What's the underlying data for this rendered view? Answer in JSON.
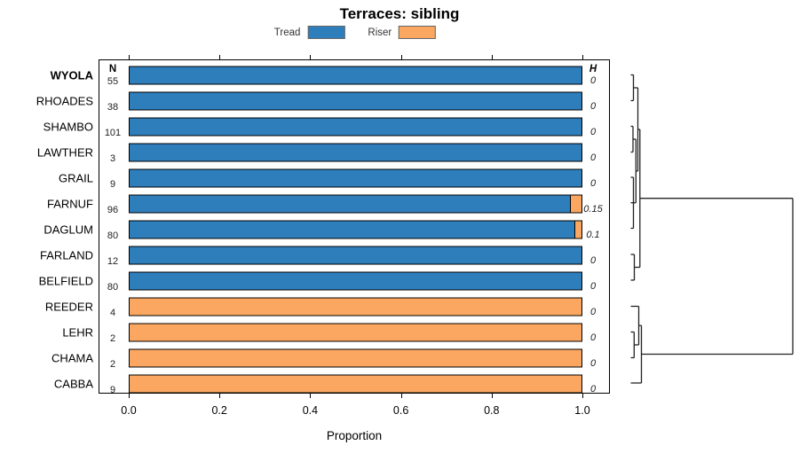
{
  "title": "Terraces: sibling",
  "legend": {
    "items": [
      {
        "label": "Tread",
        "color": "#2e7ebc"
      },
      {
        "label": "Riser",
        "color": "#fba761"
      }
    ]
  },
  "columns": {
    "n_header": "N",
    "h_header": "H"
  },
  "axis": {
    "label": "Proportion",
    "tick_labels": [
      "0.0",
      "0.2",
      "0.4",
      "0.6",
      "0.8",
      "1.0"
    ],
    "tick_values": [
      0.0,
      0.2,
      0.4,
      0.6,
      0.8,
      1.0
    ]
  },
  "chart_data": {
    "type": "bar",
    "orientation": "horizontal",
    "stacked": true,
    "title": "Terraces: sibling",
    "xlabel": "Proportion",
    "xlim": [
      0,
      1
    ],
    "legend_position": "top",
    "grid": false,
    "categories": [
      "WYOLA",
      "RHOADES",
      "SHAMBO",
      "LAWTHER",
      "GRAIL",
      "FARNUF",
      "DAGLUM",
      "FARLAND",
      "BELFIELD",
      "REEDER",
      "LEHR",
      "CHAMA",
      "CABBA"
    ],
    "bold_categories": [
      "WYOLA"
    ],
    "series": [
      {
        "name": "Tread",
        "color": "#2e7ebc",
        "values": [
          1,
          1,
          1,
          1,
          1,
          0.975,
          0.985,
          1,
          1,
          0,
          0,
          0,
          0
        ]
      },
      {
        "name": "Riser",
        "color": "#fba761",
        "values": [
          0,
          0,
          0,
          0,
          0,
          0.025,
          0.015,
          0,
          0,
          1,
          1,
          1,
          1
        ]
      }
    ],
    "n_values": [
      "55",
      "38",
      "101",
      "3",
      "9",
      "96",
      "80",
      "12",
      "80",
      "4",
      "2",
      "2",
      "9"
    ],
    "h_values": [
      "0",
      "0",
      "0",
      "0",
      "0",
      "0.15",
      "0.1",
      "0",
      "0",
      "0",
      "0",
      "0",
      "0"
    ],
    "dendrogram": {
      "side": "right",
      "description": "hierarchical clustering of terraces; root joins blue Tread cluster and orange Riser cluster",
      "clusters": [
        "[WYOLA+RHOADES]",
        "[SHAMBO+LAWTHER]",
        "[GRAIL+FARNUF+DAGLUM]",
        "[[SHAMBO+LAWTHER]+[GRAIL+FARNUF+DAGLUM]]",
        "[[WYOLA+RHOADES]+above]",
        "[FARLAND+BELFIELD]",
        "[LEHR+CHAMA]",
        "[REEDER+[LEHR+CHAMA]]",
        "[above+CABBA]",
        "root: tread-cluster + riser-cluster"
      ],
      "segments": [
        [
          710.5,
          84.5,
          713.5,
          84.5
        ],
        [
          710.5,
          113.5,
          713.5,
          113.5
        ],
        [
          713.5,
          84.5,
          713.5,
          113.5
        ],
        [
          713.5,
          99,
          718.5,
          99
        ],
        [
          710.5,
          142.5,
          713,
          142.5
        ],
        [
          710.5,
          171.5,
          713,
          171.5
        ],
        [
          713,
          142.5,
          713,
          171.5
        ],
        [
          713,
          157,
          716.3,
          157
        ],
        [
          710.5,
          200,
          713.5,
          200
        ],
        [
          710.5,
          228.7,
          713.5,
          228.7
        ],
        [
          710.5,
          257.5,
          713.5,
          257.5
        ],
        [
          713.5,
          200,
          713.5,
          257.5
        ],
        [
          713.5,
          228.7,
          716.3,
          228.7
        ],
        [
          716.3,
          157,
          716.3,
          228.7
        ],
        [
          716.3,
          193,
          718.5,
          193
        ],
        [
          718.5,
          99,
          718.5,
          193
        ],
        [
          718.5,
          146,
          720.8,
          146
        ],
        [
          710.5,
          287,
          714.5,
          287
        ],
        [
          710.5,
          316,
          714.5,
          316
        ],
        [
          714.5,
          287,
          714.5,
          316
        ],
        [
          714.5,
          301.5,
          720.8,
          301.5
        ],
        [
          720.8,
          146,
          720.8,
          301.5
        ],
        [
          720.8,
          223.7,
          893,
          223.7
        ],
        [
          710.5,
          345.5,
          719.5,
          345.5
        ],
        [
          710.5,
          374.5,
          714.3,
          374.5
        ],
        [
          710.5,
          403.5,
          714.3,
          403.5
        ],
        [
          714.3,
          374.5,
          714.3,
          403.5
        ],
        [
          714.3,
          389,
          719.5,
          389
        ],
        [
          719.5,
          345.5,
          719.5,
          389
        ],
        [
          719.5,
          367.2,
          722.5,
          367.2
        ],
        [
          710.5,
          432,
          722.5,
          432
        ],
        [
          722.5,
          367.2,
          722.5,
          432
        ],
        [
          722.5,
          399.5,
          893,
          399.5
        ],
        [
          893,
          223.7,
          893,
          399.5
        ]
      ]
    }
  }
}
